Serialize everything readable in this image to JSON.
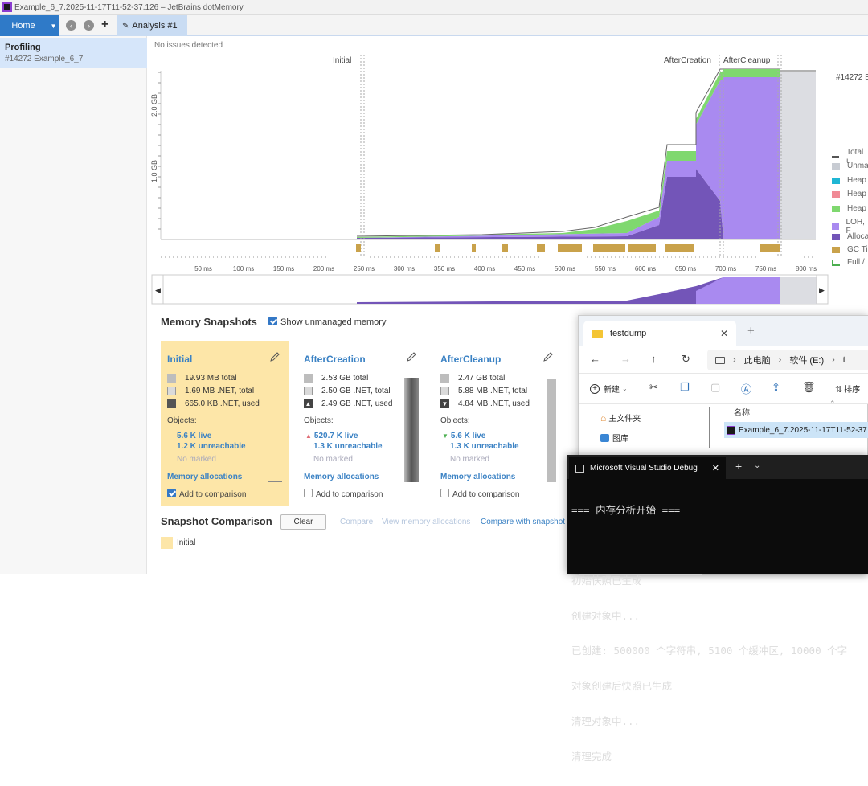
{
  "window": {
    "title": "Example_6_7.2025-11-17T11-52-37.126 – JetBrains dotMemory"
  },
  "toolbar": {
    "home_label": "Home",
    "analysis_tab": "Analysis #1"
  },
  "sidebar": {
    "item_title": "Profiling",
    "item_sub": "#14272 Example_6_7"
  },
  "status": {
    "no_issues": "No issues detected"
  },
  "chart": {
    "y_ticks": [
      "2.0 GB",
      "1.0 GB"
    ],
    "x_ticks": [
      "50 ms",
      "100 ms",
      "150 ms",
      "200 ms",
      "250 ms",
      "300 ms",
      "350 ms",
      "400 ms",
      "450 ms",
      "500 ms",
      "550 ms",
      "600 ms",
      "650 ms",
      "700 ms",
      "750 ms",
      "800 ms"
    ],
    "markers": [
      "Initial",
      "AfterCreation",
      "AfterCleanup"
    ],
    "process_label": "#14272 E",
    "legend": [
      {
        "label": "Total u",
        "color": "#555555"
      },
      {
        "label": "Unma",
        "color": "#c8ccd3"
      },
      {
        "label": "Heap",
        "color": "#1fb6d4"
      },
      {
        "label": "Heap",
        "color": "#f08a96"
      },
      {
        "label": "Heap",
        "color": "#7fd86f"
      },
      {
        "label": "LOH, F",
        "color": "#a98af0"
      },
      {
        "label": "Alloca",
        "color": "#7355b8"
      },
      {
        "label": "GC Ti",
        "color": "#c9a24b"
      },
      {
        "label": "Full /",
        "color": "#4caf50"
      }
    ]
  },
  "snapshots": {
    "title": "Memory Snapshots",
    "show_unmanaged": "Show unmanaged memory",
    "objects_label": "Objects:",
    "no_marked": "No marked",
    "mem_alloc": "Memory allocations",
    "add_cmp": "Add to comparison",
    "cards": [
      {
        "name": "Initial",
        "total": "19.93 MB total",
        "net_total": "1.69 MB .NET, total",
        "net_used": "665.0 KB .NET, used",
        "live": "5.6 K live",
        "unreachable": "1.2 K unreachable"
      },
      {
        "name": "AfterCreation",
        "total": "2.53 GB total",
        "net_total": "2.50 GB .NET, total",
        "net_used": "2.49 GB .NET, used",
        "live": "520.7 K live",
        "unreachable": "1.3 K unreachable"
      },
      {
        "name": "AfterCleanup",
        "total": "2.47 GB total",
        "net_total": "5.88 MB .NET, total",
        "net_used": "4.84 MB .NET, used",
        "live": "5.6 K live",
        "unreachable": "1.3 K unreachable"
      }
    ]
  },
  "comparison": {
    "title": "Snapshot Comparison",
    "clear": "Clear",
    "compare": "Compare",
    "view_alloc": "View memory allocations",
    "compare_with": "Compare with snapshot",
    "item": "Initial"
  },
  "explorer": {
    "tab": "testdump",
    "crumb1": "此电脑",
    "crumb2": "软件 (E:)",
    "crumb3": "t",
    "new_btn": "新建",
    "sort_btn": "排序",
    "col_name": "名称",
    "nav_home": "主文件夹",
    "nav_pics": "图库",
    "file": "Example_6_7.2025-11-17T11-52-37"
  },
  "console": {
    "tab": "Microsoft Visual Studio Debug",
    "lines": [
      "=== 内存分析开始 ===",
      "",
      "初始快照已生成",
      "创建对象中...",
      "已创建: 500000 个字符串, 5100 个缓冲区, 10000 个字",
      "对象创建后快照已生成",
      "清理对象中...",
      "清理完成"
    ]
  }
}
